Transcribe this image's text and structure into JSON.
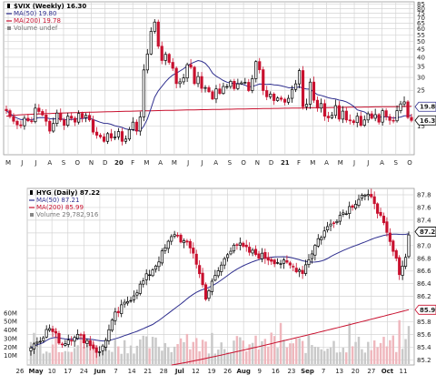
{
  "chart_data": [
    {
      "type": "candlestick",
      "legend": [
        {
          "label": "$VIX (Weekly) 16.30",
          "color": "#000000",
          "icon": "candlestick-icon"
        },
        {
          "label": "MA(50) 19.80",
          "color": "#2f2f8f",
          "icon": "line-icon"
        },
        {
          "label": "MA(200) 19.78",
          "color": "#c8102e",
          "icon": "line-icon"
        },
        {
          "label": "Volume undef",
          "color": "#777777",
          "icon": "volume-icon"
        }
      ],
      "yticks": [
        15,
        20,
        25,
        30,
        35,
        40,
        45,
        50,
        55,
        60,
        65,
        70,
        75,
        80,
        85
      ],
      "ylim": [
        10,
        88
      ],
      "ylabel_scale": "log",
      "x_labels": [
        "M",
        "J",
        "J",
        "A",
        "S",
        "O",
        "N",
        "D",
        "20",
        "F",
        "M",
        "A",
        "M",
        "J",
        "J",
        "A",
        "S",
        "O",
        "N",
        "D",
        "21",
        "F",
        "M",
        "A",
        "M",
        "J",
        "J",
        "A",
        "S",
        "O"
      ],
      "price_tags": [
        {
          "value": "19.80",
          "y": 19.8,
          "color": "#2f2f8f"
        },
        {
          "value": "16.30",
          "y": 16.3,
          "color": "#000000"
        }
      ],
      "close": [
        18.7,
        17.2,
        16.1,
        15.3,
        15.1,
        16.8,
        16.2,
        16.0,
        19.4,
        18.5,
        17.6,
        16.1,
        14.0,
        15.6,
        18.1,
        16.4,
        15.2,
        17.3,
        16.8,
        15.9,
        18.0,
        16.9,
        17.5,
        16.4,
        13.8,
        13.2,
        12.9,
        12.1,
        13.5,
        12.7,
        12.9,
        13.9,
        12.1,
        12.5,
        14.3,
        15.9,
        14.0,
        17.1,
        33.4,
        41.9,
        57.8,
        66.0,
        46.8,
        38.2,
        41.7,
        37.2,
        34.2,
        27.5,
        28.2,
        29.8,
        36.0,
        34.7,
        27.5,
        30.4,
        25.7,
        26.0,
        24.5,
        22.1,
        25.5,
        23.9,
        26.4,
        26.4,
        28.4,
        25.6,
        27.4,
        27.8,
        28.0,
        24.9,
        29.5,
        37.6,
        33.5,
        24.9,
        22.8,
        23.7,
        21.6,
        22.4,
        22.0,
        21.1,
        22.3,
        25.3,
        27.4,
        33.1,
        19.8,
        20.5,
        28.1,
        21.7,
        19.4,
        20.7,
        17.3,
        16.9,
        17.5,
        20.1,
        16.6,
        18.6,
        16.4,
        16.2,
        15.8,
        17.3,
        15.2,
        16.4,
        17.9,
        16.8,
        17.7,
        15.9,
        18.7,
        17.2,
        16.3,
        16.2,
        18.7,
        20.6,
        21.2,
        17.0,
        16.3
      ]
    },
    {
      "type": "candlestick",
      "legend": [
        {
          "label": "HYG (Daily) 87.22",
          "color": "#000000",
          "icon": "candlestick-icon"
        },
        {
          "label": "MA(50) 87.21",
          "color": "#2f2f8f",
          "icon": "line-icon"
        },
        {
          "label": "MA(200) 85.99",
          "color": "#c8102e",
          "icon": "line-icon"
        },
        {
          "label": "Volume 29,782,916",
          "color": "#777777",
          "icon": "volume-icon"
        }
      ],
      "yticks": [
        "85.2",
        "85.4",
        "85.6",
        "85.8",
        "86.0",
        "86.2",
        "86.4",
        "86.6",
        "86.8",
        "87.0",
        "87.2",
        "87.4",
        "87.6",
        "87.8"
      ],
      "ylim": [
        85.12,
        87.9
      ],
      "volume_ticks": [
        "10M",
        "20M",
        "30M",
        "40M",
        "50M",
        "60M"
      ],
      "x_labels": [
        "26",
        "May",
        "10",
        "17",
        "24",
        "Jun",
        "7",
        "14",
        "21",
        "28",
        "Jul",
        "12",
        "19",
        "26",
        "Aug",
        "9",
        "16",
        "23",
        "Sep",
        "7",
        "13",
        "20",
        "27",
        "Oct",
        "11"
      ],
      "price_tags": [
        {
          "value": "87.22",
          "y": 87.22,
          "color": "#000000"
        },
        {
          "value": "85.99",
          "y": 85.99,
          "color": "#c8102e"
        }
      ]
    }
  ]
}
